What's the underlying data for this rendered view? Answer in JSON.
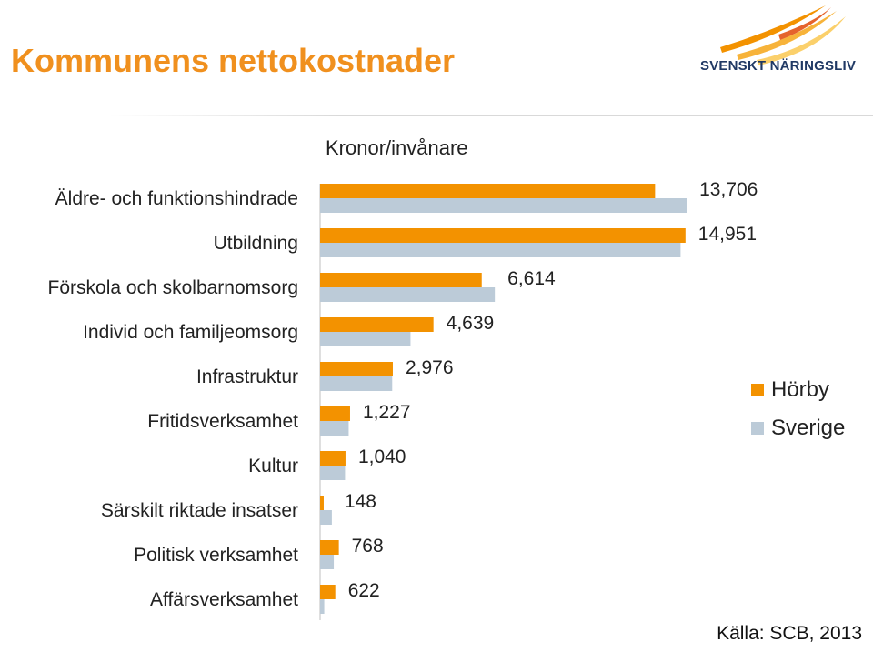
{
  "header": {
    "title": "Kommunens nettokostnader",
    "logo_text": "SVENSKT NÄRINGSLIV"
  },
  "chart_data": {
    "type": "bar",
    "orientation": "horizontal",
    "title": "Kronor/invånare",
    "categories": [
      "Äldre- och funktionshindrade",
      "Utbildning",
      "Förskola och skolbarnomsorg",
      "Individ och familjeomsorg",
      "Infrastruktur",
      "Fritidsverksamhet",
      "Kultur",
      "Särskilt riktade insatser",
      "Politisk verksamhet",
      "Affärsverksamhet"
    ],
    "series": [
      {
        "name": "Hörby",
        "color": "#f39200",
        "values": [
          13706,
          14951,
          6614,
          4639,
          2976,
          1227,
          1040,
          148,
          768,
          622
        ],
        "labels": [
          "13,706",
          "14,951",
          "6,614",
          "4,639",
          "2,976",
          "1,227",
          "1,040",
          "148",
          "768",
          "622"
        ]
      },
      {
        "name": "Sverige",
        "color": "#bccbd8",
        "values": [
          15000,
          14750,
          7150,
          3700,
          2950,
          1170,
          1020,
          480,
          560,
          170
        ]
      }
    ],
    "xlim": [
      0,
      16000
    ],
    "grid": false,
    "legend_position": "right"
  },
  "footer": {
    "source": "Källa: SCB, 2013"
  }
}
